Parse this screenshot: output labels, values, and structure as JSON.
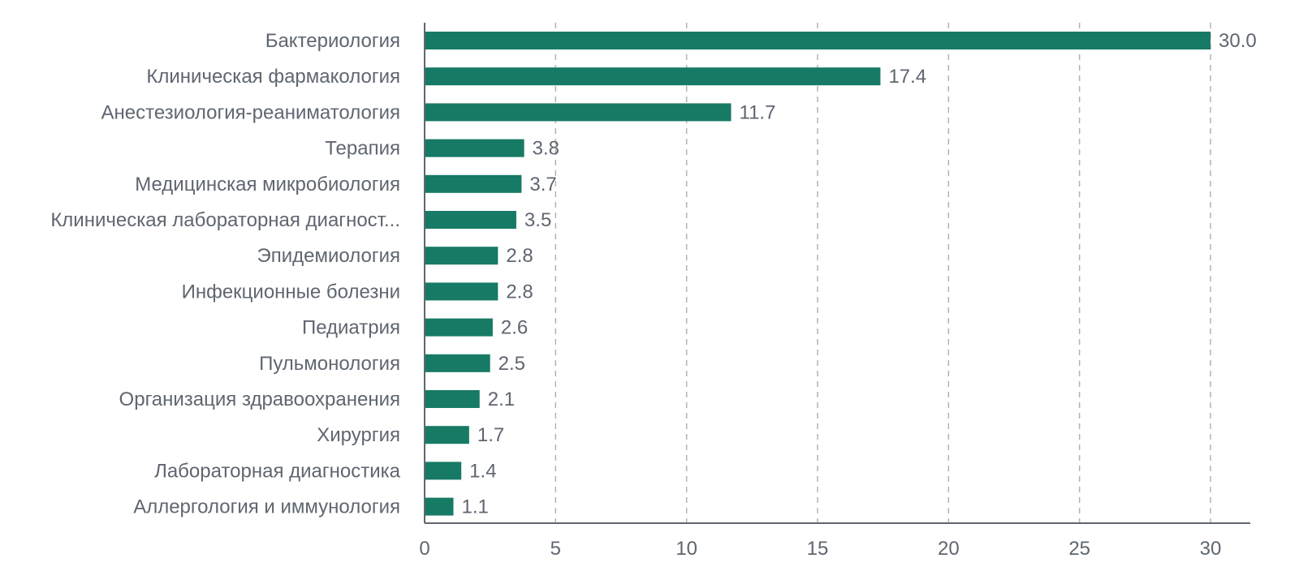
{
  "chart_data": {
    "type": "bar",
    "orientation": "horizontal",
    "title": "",
    "xlabel": "",
    "ylabel": "",
    "categories": [
      "Бактериология",
      "Клиническая фармакология",
      "Анестезиология-реаниматология",
      "Терапия",
      "Медицинская микробиология",
      "Клиническая лабораторная диагност...",
      "Эпидемиология",
      "Инфекционные болезни",
      "Педиатрия",
      "Пульмонология",
      "Организация здравоохранения",
      "Хирургия",
      "Лабораторная диагностика",
      "Аллергология и иммунология"
    ],
    "values": [
      30.0,
      17.4,
      11.7,
      3.8,
      3.7,
      3.5,
      2.8,
      2.8,
      2.6,
      2.5,
      2.1,
      1.7,
      1.4,
      1.1
    ],
    "value_labels": [
      "30.0",
      "17.4",
      "11.7",
      "3.8",
      "3.7",
      "3.5",
      "2.8",
      "2.8",
      "2.6",
      "2.5",
      "2.1",
      "1.7",
      "1.4",
      "1.1"
    ],
    "xlim": [
      0,
      31.5
    ],
    "xticks": [
      0,
      5,
      10,
      15,
      20,
      25,
      30
    ],
    "xtick_labels": [
      "0",
      "5",
      "10",
      "15",
      "20",
      "25",
      "30"
    ],
    "grid": "vertical-dashed",
    "legend": "none",
    "bar_color": "#177a65"
  }
}
